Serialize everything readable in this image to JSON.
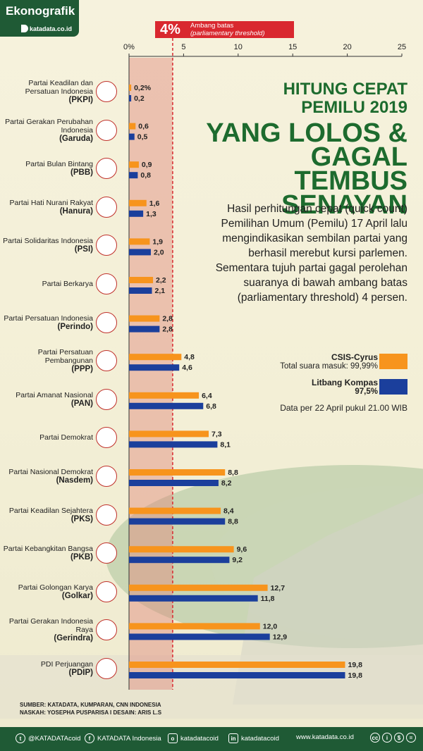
{
  "brand": {
    "title": "Ekonografik",
    "logo_text": "katadata.co.id"
  },
  "threshold": {
    "percent_label": "4%",
    "label": "Ambang batas",
    "label_italic": "(parliamentary threshold)",
    "value": 4
  },
  "headline": {
    "line1": "HITUNG CEPAT",
    "line2": "PEMILU 2019",
    "line3": "YANG LOLOS &",
    "line4": "GAGAL TEMBUS",
    "line5": "SENAYAN"
  },
  "description": "Hasil perhitungan cepat (quick count) Pemilihan Umum (Pemilu) 17 April lalu mengindikasikan sembilan partai yang berhasil merebut kursi parlemen. Sementara tujuh partai gagal perolehan suaranya di bawah ambang batas (parliamentary threshold) 4 persen.",
  "legend": [
    {
      "name": "CSIS-Cyrus",
      "sub": "Total suara masuk: 99,99%",
      "color": "#f7941d"
    },
    {
      "name": "Litbang Kompas",
      "sub": "97,5%",
      "color": "#1b3f9c"
    }
  ],
  "data_as_of": "Data per 22 April pukul 21.00 WIB",
  "chart_data": {
    "type": "bar",
    "orientation": "horizontal",
    "xlim": [
      0,
      25
    ],
    "x_ticks": [
      "0%",
      "5",
      "10",
      "15",
      "20",
      "25"
    ],
    "grid": false,
    "legend_position": "right",
    "categories": [
      {
        "name": "Partai Keadilan dan Persatuan Indonesia",
        "abbr": "(PKPI)",
        "logo_icon": "pkpi-logo-icon"
      },
      {
        "name": "Partai Gerakan Perubahan Indonesia",
        "abbr": "(Garuda)",
        "logo_icon": "garuda-logo-icon"
      },
      {
        "name": "Partai Bulan Bintang",
        "abbr": "(PBB)",
        "logo_icon": "pbb-logo-icon"
      },
      {
        "name": "Partai Hati Nurani Rakyat",
        "abbr": "(Hanura)",
        "logo_icon": "hanura-logo-icon"
      },
      {
        "name": "Partai Solidaritas Indonesia",
        "abbr": "(PSI)",
        "logo_icon": "psi-logo-icon"
      },
      {
        "name": "Partai Berkarya",
        "abbr": "",
        "logo_icon": "berkarya-logo-icon"
      },
      {
        "name": "Partai Persatuan Indonesia",
        "abbr": "(Perindo)",
        "logo_icon": "perindo-logo-icon"
      },
      {
        "name": "Partai Persatuan Pembangunan",
        "abbr": "(PPP)",
        "logo_icon": "ppp-logo-icon"
      },
      {
        "name": "Partai Amanat Nasional",
        "abbr": "(PAN)",
        "logo_icon": "pan-logo-icon"
      },
      {
        "name": "Partai Demokrat",
        "abbr": "",
        "logo_icon": "demokrat-logo-icon"
      },
      {
        "name": "Partai Nasional Demokrat",
        "abbr": "(Nasdem)",
        "logo_icon": "nasdem-logo-icon"
      },
      {
        "name": "Partai Keadilan Sejahtera",
        "abbr": "(PKS)",
        "logo_icon": "pks-logo-icon"
      },
      {
        "name": "Partai Kebangkitan Bangsa",
        "abbr": "(PKB)",
        "logo_icon": "pkb-logo-icon"
      },
      {
        "name": "Partai Golongan Karya",
        "abbr": "(Golkar)",
        "logo_icon": "golkar-logo-icon"
      },
      {
        "name": "Partai Gerakan Indonesia Raya",
        "abbr": "(Gerindra)",
        "logo_icon": "gerindra-logo-icon"
      },
      {
        "name": "PDI Perjuangan",
        "abbr": "(PDIP)",
        "logo_icon": "pdip-logo-icon"
      }
    ],
    "series": [
      {
        "name": "CSIS-Cyrus",
        "color": "#f7941d",
        "values": [
          0.2,
          0.6,
          0.9,
          1.6,
          1.9,
          2.2,
          2.8,
          4.8,
          6.4,
          7.3,
          8.8,
          8.4,
          9.6,
          12.7,
          12.0,
          19.8
        ],
        "labels": [
          "0,2%",
          "0,6",
          "0,9",
          "1,6",
          "1,9",
          "2,2",
          "2,8",
          "4,8",
          "6,4",
          "7,3",
          "8,8",
          "8,4",
          "9,6",
          "12,7",
          "12,0",
          "19,8"
        ]
      },
      {
        "name": "Litbang Kompas",
        "color": "#1b3f9c",
        "values": [
          0.2,
          0.5,
          0.8,
          1.3,
          2.0,
          2.1,
          2.8,
          4.6,
          6.8,
          8.1,
          8.2,
          8.8,
          9.2,
          11.8,
          12.9,
          19.8
        ],
        "labels": [
          "0,2",
          "0,5",
          "0,8",
          "1,3",
          "2,0",
          "2,1",
          "2,8",
          "4,6",
          "6,8",
          "8,1",
          "8,2",
          "8,8",
          "9,2",
          "11,8",
          "12,9",
          "19,8"
        ]
      }
    ]
  },
  "sources": {
    "line1": "SUMBER: KATADATA, KUMPARAN, CNN INDONESIA",
    "line2": "NASKAH: YOSEPHA PUSPARISA I DESAIN: ARIS L.S"
  },
  "footer": {
    "twitter": "@KATADATAcoid",
    "facebook": "KATADATA Indonesia",
    "instagram": "katadatacoid",
    "linkedin": "katadatacoid",
    "website": "www.katadata.co.id"
  }
}
